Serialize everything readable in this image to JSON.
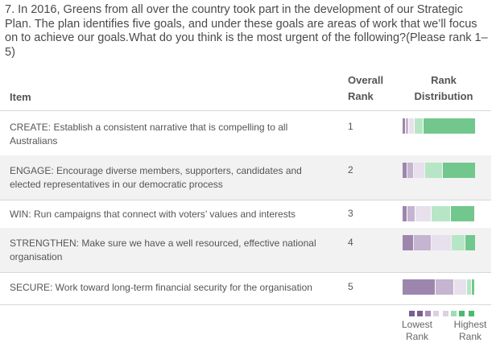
{
  "question": "7. In 2016, Greens from all over the country took part in the development of our Strategic Plan. The plan identifies five goals, and under these goals are areas of work that we’ll focus on to achieve our goals.What do you think is the most urgent of the following?(Please rank 1–5)",
  "table": {
    "col_item": "Item",
    "col_rank": "Overall Rank",
    "col_dist": "Rank Distribution",
    "rows": [
      {
        "item": "CREATE: Establish a consistent narrative that is compelling to all Australians",
        "rank": "1",
        "dist": [
          0.04,
          0.04,
          0.08,
          0.12,
          0.72
        ]
      },
      {
        "item": "ENGAGE: Encourage diverse members, supporters, candidates and elected representatives in our democratic process",
        "rank": "2",
        "dist": [
          0.07,
          0.09,
          0.15,
          0.24,
          0.45
        ]
      },
      {
        "item": "WIN: Run campaigns that connect with voters’ values and interests",
        "rank": "3",
        "dist": [
          0.07,
          0.11,
          0.22,
          0.27,
          0.33
        ]
      },
      {
        "item": "STRENGTHEN: Make sure we have a well resourced, effective national organisation",
        "rank": "4",
        "dist": [
          0.15,
          0.24,
          0.28,
          0.19,
          0.14
        ]
      },
      {
        "item": "SECURE: Work toward long-term financial security for the organisation",
        "rank": "5",
        "dist": [
          0.45,
          0.26,
          0.18,
          0.07,
          0.04
        ]
      }
    ]
  },
  "legend": {
    "lowest": "Lowest Rank",
    "highest": "Highest Rank",
    "colors": [
      "#7b5f8f",
      "#a78ab8",
      "#ddd0e3",
      "#9fddb4",
      "#4cb972"
    ]
  },
  "colors": {
    "rank1_lowest": "#9d86ad",
    "rank2": "#c5b5d0",
    "rank3": "#e8e0ec",
    "rank4": "#b7e6c6",
    "rank5_highest": "#72c78d"
  }
}
